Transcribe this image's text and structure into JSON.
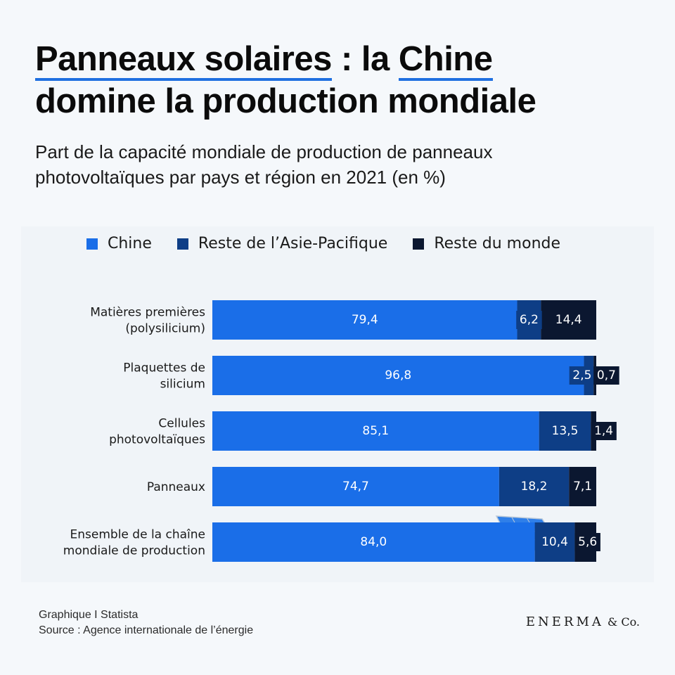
{
  "title": {
    "part1": "Panneaux solaires",
    "part2": " : la ",
    "part3": "Chine",
    "part4": "domine la production mondiale"
  },
  "subtitle": "Part de la capacité mondiale de production de panneaux photovoltaïques par pays et région en 2021 (en %)",
  "colors": {
    "chine": "#1a6ee8",
    "asie": "#0e3e86",
    "monde": "#0b1730",
    "text_dark": "#1a1a1a",
    "accent": "#1f6fe0"
  },
  "chart_data": {
    "type": "bar",
    "orientation": "horizontal",
    "stacked": true,
    "categories": [
      [
        "Matières premières",
        "(polysilicium)"
      ],
      [
        "Plaquettes de",
        "silicium"
      ],
      [
        "Cellules",
        "photovoltaïques"
      ],
      [
        "Panneaux"
      ],
      [
        "Ensemble de la chaîne",
        "mondiale de production"
      ]
    ],
    "series": [
      {
        "name": "Chine",
        "values": [
          79.4,
          96.8,
          85.1,
          74.7,
          84.0
        ],
        "labels": [
          "79,4",
          "96,8",
          "85,1",
          "74,7",
          "84,0"
        ]
      },
      {
        "name": "Reste de l’Asie-Pacifique",
        "values": [
          6.2,
          2.5,
          13.5,
          18.2,
          10.4
        ],
        "labels": [
          "6,2",
          "2,5",
          "13,5",
          "18,2",
          "10,4"
        ]
      },
      {
        "name": "Reste du monde",
        "values": [
          14.4,
          0.7,
          1.4,
          7.1,
          5.6
        ],
        "labels": [
          "14,4",
          "0,7",
          "1,4",
          "7,1",
          "5,6"
        ]
      }
    ],
    "xlim": [
      0,
      100
    ],
    "legend": "top",
    "grid": false
  },
  "footer": {
    "line1": "Graphique I Statista",
    "line2": "Source : Agence internationale de l’énergie"
  },
  "brand": {
    "name": "ENERMA",
    "suffix": " & Co."
  }
}
